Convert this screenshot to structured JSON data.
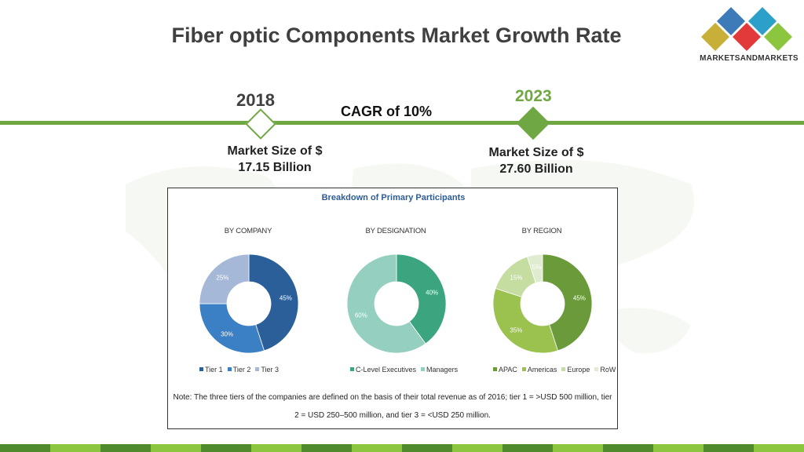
{
  "title": "Fiber optic Components Market Growth Rate",
  "logo": {
    "text": "MARKETSANDMARKETS",
    "colors": [
      "#3d7ab8",
      "#2da0c9",
      "#e23a3a",
      "#8cc63f",
      "#c8b038"
    ]
  },
  "timeline": {
    "start": {
      "year": "2018",
      "market_size": "Market Size of $ 17.15 Billion"
    },
    "end": {
      "year": "2023",
      "market_size": "Market Size of $ 27.60 Billion"
    },
    "cagr": "CAGR of 10%",
    "accent": "#6fa842"
  },
  "panel": {
    "title": "Breakdown of Primary Participants",
    "note": "Note: The three tiers of the companies are defined on the basis of their total  revenue as of 2016; tier 1 = >USD 500 million, tier 2 = USD 250–500 million, and tier 3 = <USD 250 million."
  },
  "chart_data": [
    {
      "type": "pie",
      "title": "BY COMPANY",
      "donut": true,
      "categories": [
        "Tier 1",
        "Tier 2",
        "Tier 3"
      ],
      "values": [
        45,
        30,
        25
      ],
      "labels": [
        "45%",
        "30%",
        "25%"
      ],
      "colors": [
        "#2b5f9a",
        "#3b7fc4",
        "#a5b8d8"
      ],
      "legend": "bottom"
    },
    {
      "type": "pie",
      "title": "BY DESIGNATION",
      "donut": true,
      "categories": [
        "C-Level Executives",
        "Managers"
      ],
      "values": [
        40,
        60
      ],
      "labels": [
        "40%",
        "60%"
      ],
      "colors": [
        "#3aa57f",
        "#95cfc0"
      ],
      "legend": "bottom"
    },
    {
      "type": "pie",
      "title": "BY REGION",
      "donut": true,
      "categories": [
        "APAC",
        "Americas",
        "Europe",
        "RoW"
      ],
      "values": [
        45,
        35,
        15,
        5
      ],
      "labels": [
        "45%",
        "35%",
        "15%",
        "5%"
      ],
      "colors": [
        "#6a9a3a",
        "#9bc14e",
        "#c5dda1",
        "#e0ecd0"
      ],
      "legend": "bottom"
    }
  ]
}
